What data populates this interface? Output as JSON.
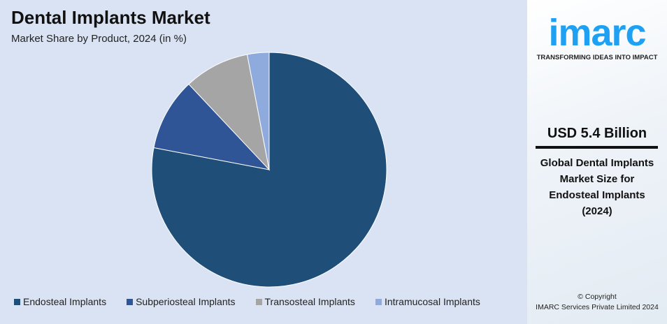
{
  "title": "Dental Implants Market",
  "subtitle": "Market Share by Product, 2024 (in %)",
  "chart_data": {
    "type": "pie",
    "categories": [
      "Endosteal Implants",
      "Subperiosteal Implants",
      "Transosteal Implants",
      "Intramucosal Implants"
    ],
    "values": [
      78,
      10,
      9,
      3
    ],
    "colors": [
      "#1f4e79",
      "#2f5597",
      "#a5a5a5",
      "#8faadc"
    ],
    "start": "12 o'clock, clockwise",
    "legend": "bottom"
  },
  "sidebar": {
    "logo": "imarc",
    "tagline": "TRANSFORMING IDEAS INTO IMPACT",
    "value": "USD 5.4 Billion",
    "description": [
      "Global Dental Implants",
      "Market Size for",
      "Endosteal Implants",
      "(2024)"
    ],
    "copyright": "© Copyright",
    "company": "IMARC Services Private Limited 2024"
  }
}
